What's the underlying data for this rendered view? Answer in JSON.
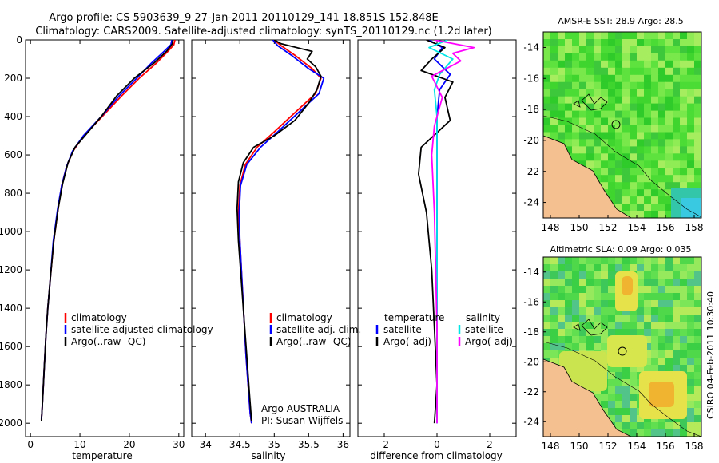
{
  "header": {
    "line1": "Argo profile: CS 5903639_9 27-Jan-2011 20110129_141 18.851S 152.848E",
    "line2": "Climatology: CARS2009. Satellite-adjusted climatology: synTS_20110129.nc (1.2d later)"
  },
  "colors": {
    "climatology": "#ff0000",
    "satellite": "#0000ff",
    "argo": "#000000",
    "sat_diff": "#00e5e5",
    "argo_diff": "#ff00ff",
    "land": "#f5c08f"
  },
  "chart_data": [
    {
      "type": "line",
      "id": "temperature",
      "xlabel": "temperature",
      "ylabel": "",
      "xlim": [
        -1,
        31
      ],
      "ylim": [
        0,
        2070
      ],
      "y_reversed": true,
      "xticks": [
        "0",
        "10",
        "20",
        "30"
      ],
      "yticks": [
        "0",
        "200",
        "400",
        "600",
        "800",
        "1000",
        "1200",
        "1400",
        "1600",
        "1800",
        "2000"
      ],
      "series": [
        {
          "name": "climatology",
          "color": "#ff0000",
          "x": [
            29.2,
            29.0,
            27.8,
            25.5,
            22.0,
            18.5,
            14.5,
            10.8,
            8.6,
            7.3,
            6.3,
            5.6,
            4.7,
            4.0,
            3.5,
            3.1,
            2.8,
            2.5,
            2.3,
            2.2
          ],
          "y": [
            0,
            25,
            60,
            120,
            200,
            290,
            400,
            500,
            580,
            660,
            760,
            880,
            1050,
            1250,
            1400,
            1550,
            1700,
            1850,
            1950,
            1980
          ]
        },
        {
          "name": "satellite-adjusted climatology",
          "color": "#0000ff",
          "x": [
            28.6,
            28.4,
            27.0,
            24.5,
            21.5,
            18.0,
            14.3,
            10.7,
            8.5,
            7.3,
            6.3,
            5.5,
            4.6,
            4.0,
            3.5,
            3.1,
            2.8,
            2.5,
            2.3,
            2.2
          ],
          "y": [
            0,
            25,
            60,
            120,
            200,
            290,
            400,
            500,
            580,
            660,
            760,
            880,
            1050,
            1250,
            1400,
            1550,
            1700,
            1850,
            1950,
            1980
          ]
        },
        {
          "name": "Argo(..raw -QC)",
          "color": "#000000",
          "x": [
            28.8,
            28.7,
            27.5,
            25.0,
            21.0,
            17.5,
            14.3,
            11.0,
            9.0,
            7.6,
            6.5,
            5.6,
            4.7,
            4.0,
            3.5,
            3.1,
            2.8,
            2.5,
            2.3,
            2.2
          ],
          "y": [
            0,
            20,
            60,
            120,
            200,
            290,
            400,
            500,
            560,
            640,
            750,
            880,
            1050,
            1250,
            1400,
            1550,
            1700,
            1850,
            1950,
            1990
          ]
        }
      ],
      "legend": [
        "climatology",
        "satellite-adjusted climatology",
        "Argo(..raw -QC)"
      ]
    },
    {
      "type": "line",
      "id": "salinity",
      "xlabel": "salinity",
      "ylabel": "",
      "xlim": [
        33.8,
        36.1
      ],
      "ylim": [
        0,
        2070
      ],
      "y_reversed": true,
      "xticks": [
        "34",
        "34.5",
        "35",
        "35.5",
        "36"
      ],
      "series": [
        {
          "name": "climatology",
          "color": "#ff0000",
          "x": [
            35.0,
            35.1,
            35.3,
            35.55,
            35.68,
            35.6,
            35.3,
            35.0,
            34.75,
            34.58,
            34.5,
            34.48,
            34.5,
            34.53,
            34.56,
            34.59,
            34.62,
            34.65,
            34.67
          ],
          "y": [
            0,
            30,
            80,
            150,
            200,
            280,
            380,
            480,
            560,
            650,
            760,
            900,
            1050,
            1250,
            1450,
            1650,
            1800,
            1950,
            2000
          ]
        },
        {
          "name": "satellite adj. clim.",
          "color": "#0000ff",
          "x": [
            34.98,
            35.05,
            35.25,
            35.5,
            35.72,
            35.65,
            35.35,
            35.05,
            34.8,
            34.6,
            34.51,
            34.49,
            34.5,
            34.53,
            34.56,
            34.59,
            34.62,
            34.65,
            34.67
          ],
          "y": [
            0,
            30,
            80,
            150,
            200,
            280,
            380,
            480,
            560,
            650,
            760,
            900,
            1050,
            1250,
            1450,
            1650,
            1800,
            1950,
            2000
          ]
        },
        {
          "name": "Argo(..raw -QC)",
          "color": "#000000",
          "x": [
            35.0,
            35.1,
            35.55,
            35.48,
            35.6,
            35.68,
            35.62,
            35.5,
            35.3,
            35.0,
            34.7,
            34.55,
            34.48,
            34.46,
            34.48,
            34.52,
            34.56,
            34.6,
            34.64,
            34.67
          ],
          "y": [
            0,
            20,
            60,
            100,
            140,
            190,
            260,
            330,
            420,
            500,
            560,
            640,
            740,
            880,
            1050,
            1250,
            1450,
            1650,
            1850,
            1990
          ]
        }
      ],
      "legend": [
        "climatology",
        "satellite adj. clim.",
        "Argo(..raw -QC)"
      ],
      "annotation": [
        "Argo AUSTRALIA",
        "PI: Susan Wijffels"
      ]
    },
    {
      "type": "line",
      "id": "difference",
      "xlabel": "difference from climatology",
      "ylabel": "",
      "xlim": [
        -3,
        3
      ],
      "ylim": [
        0,
        2070
      ],
      "y_reversed": true,
      "xticks": [
        "-2",
        "0",
        "2"
      ],
      "series": [
        {
          "name": "temperature satellite",
          "color": "#0000ff",
          "x": [
            -0.3,
            0.2,
            -0.1,
            0.5,
            0.1,
            0.0,
            0.0,
            0.0,
            0.0,
            0.0,
            0.0,
            0.0
          ],
          "y": [
            0,
            40,
            100,
            180,
            260,
            400,
            600,
            800,
            1200,
            1600,
            1900,
            2000
          ]
        },
        {
          "name": "temperature Argo(-adj)",
          "color": "#000000",
          "x": [
            -0.4,
            0.3,
            -0.2,
            -0.6,
            0.6,
            0.3,
            0.5,
            -0.6,
            -0.7,
            -0.4,
            -0.2,
            -0.1,
            0.0,
            -0.1
          ],
          "y": [
            0,
            40,
            100,
            160,
            220,
            300,
            420,
            560,
            700,
            900,
            1200,
            1500,
            1800,
            2000
          ]
        },
        {
          "name": "salinity satellite",
          "color": "#00e5e5",
          "x": [
            0.4,
            -0.3,
            0.6,
            0.1,
            -0.1,
            0.0,
            0.0,
            0.0,
            0.0,
            0.0,
            0.0
          ],
          "y": [
            0,
            40,
            100,
            180,
            260,
            400,
            600,
            900,
            1300,
            1700,
            2000
          ]
        },
        {
          "name": "salinity Argo(-adj)",
          "color": "#ff00ff",
          "x": [
            -0.1,
            1.4,
            0.6,
            0.9,
            -0.2,
            0.2,
            -0.1,
            -0.2,
            -0.1,
            0.0,
            0.0
          ],
          "y": [
            0,
            40,
            70,
            110,
            190,
            300,
            450,
            600,
            900,
            1500,
            2000
          ]
        }
      ],
      "legend": {
        "temperature": "temperature",
        "salinity": "salinity",
        "items": [
          "satellite",
          "Argo(-adj)",
          "satellite",
          "Argo(-adj)"
        ]
      }
    },
    {
      "type": "heatmap",
      "id": "sst_map",
      "title": "AMSR-E SST: 28.9 Argo: 28.5",
      "xlim": [
        147.5,
        158.5
      ],
      "ylim": [
        -25,
        -13
      ],
      "xticks": [
        "148",
        "150",
        "152",
        "154",
        "156",
        "158"
      ],
      "yticks": [
        "-14",
        "-16",
        "-18",
        "-20",
        "-22",
        "-24"
      ]
    },
    {
      "type": "heatmap",
      "id": "sla_map",
      "title": "Altimetric SLA: 0.09 Argo: 0.035",
      "xlim": [
        147.5,
        158.5
      ],
      "ylim": [
        -25,
        -13
      ],
      "xticks": [
        "148",
        "150",
        "152",
        "154",
        "156",
        "158"
      ],
      "yticks": [
        "-14",
        "-16",
        "-18",
        "-20",
        "-22",
        "-24"
      ]
    }
  ],
  "footer": {
    "stamp": "CSIRO 04-Feb-2011 10:30:40"
  }
}
